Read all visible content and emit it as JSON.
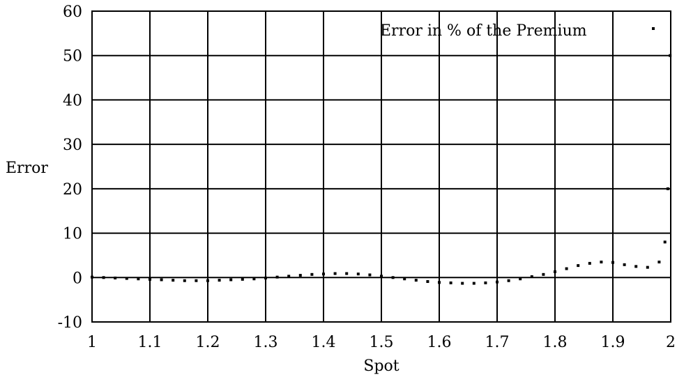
{
  "chart_data": {
    "type": "scatter",
    "xlabel": "Spot",
    "ylabel": "Error",
    "xlim": [
      1,
      2
    ],
    "ylim": [
      -10,
      60
    ],
    "xticks": [
      1,
      1.1,
      1.2,
      1.3,
      1.4,
      1.5,
      1.6,
      1.7,
      1.8,
      1.9,
      2
    ],
    "xtick_labels": [
      "1",
      "1.1",
      "1.2",
      "1.3",
      "1.4",
      "1.5",
      "1.6",
      "1.7",
      "1.8",
      "1.9",
      "2"
    ],
    "yticks": [
      -10,
      0,
      10,
      20,
      30,
      40,
      50,
      60
    ],
    "ytick_labels": [
      "-10",
      "0",
      "10",
      "20",
      "30",
      "40",
      "50",
      "60"
    ],
    "grid": true,
    "legend_position": "top-right",
    "series": [
      {
        "name": "Error in % of the Premium",
        "marker": "dot",
        "color": "#000000",
        "x": [
          1.0,
          1.02,
          1.04,
          1.06,
          1.08,
          1.1,
          1.12,
          1.14,
          1.16,
          1.18,
          1.2,
          1.22,
          1.24,
          1.26,
          1.28,
          1.3,
          1.32,
          1.34,
          1.36,
          1.38,
          1.4,
          1.42,
          1.44,
          1.46,
          1.48,
          1.5,
          1.52,
          1.54,
          1.56,
          1.58,
          1.6,
          1.62,
          1.64,
          1.66,
          1.68,
          1.7,
          1.72,
          1.74,
          1.76,
          1.78,
          1.8,
          1.82,
          1.84,
          1.86,
          1.88,
          1.9,
          1.92,
          1.94,
          1.96,
          1.98,
          1.99,
          1.995,
          1.999
        ],
        "y": [
          0.1,
          0.0,
          -0.1,
          -0.2,
          -0.3,
          -0.4,
          -0.5,
          -0.6,
          -0.7,
          -0.7,
          -0.7,
          -0.6,
          -0.5,
          -0.4,
          -0.3,
          -0.1,
          0.1,
          0.3,
          0.5,
          0.7,
          0.8,
          0.9,
          0.9,
          0.8,
          0.6,
          0.3,
          0.0,
          -0.3,
          -0.6,
          -0.9,
          -1.1,
          -1.2,
          -1.3,
          -1.3,
          -1.2,
          -1.0,
          -0.7,
          -0.3,
          0.2,
          0.7,
          1.3,
          2.0,
          2.7,
          3.2,
          3.5,
          3.4,
          2.9,
          2.5,
          2.3,
          3.5,
          8.0,
          20.0,
          50.0
        ]
      }
    ]
  }
}
